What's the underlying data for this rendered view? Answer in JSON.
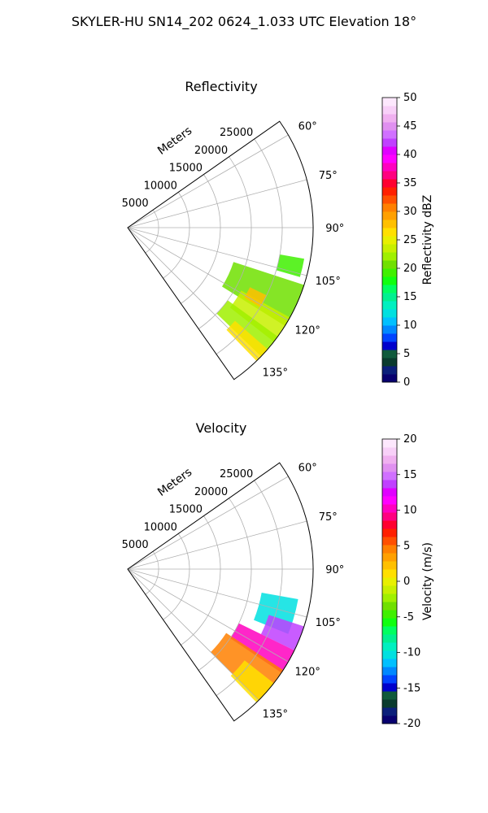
{
  "figure_title": "SKYLER-HU  SN14_202  0624_1.033 UTC Elevation 18°",
  "chart_data": [
    {
      "type": "polar-sector-radar",
      "title": "Reflectivity",
      "radial_label": "Meters",
      "theta_range_deg": [
        55,
        145
      ],
      "r_range": [
        0,
        30000
      ],
      "r_ticks": [
        5000,
        10000,
        15000,
        20000,
        25000
      ],
      "theta_ticks_deg": [
        60,
        75,
        90,
        105,
        120,
        135
      ],
      "theta_tick_labels": [
        "60°",
        "75°",
        "90°",
        "105°",
        "120°",
        "135°"
      ],
      "grid": true,
      "colorbar": {
        "label": "Reflectivity dBZ",
        "range": [
          0,
          50
        ],
        "ticks": [
          0,
          5,
          10,
          15,
          20,
          25,
          30,
          35,
          40,
          45,
          50
        ],
        "colors": [
          "#08006f",
          "#0b1f7a",
          "#0a3b2e",
          "#105a3c",
          "#0000cc",
          "#0044ff",
          "#0088ff",
          "#00c0ff",
          "#00e0e0",
          "#00f0c0",
          "#00f090",
          "#00ff60",
          "#10ff10",
          "#40f000",
          "#70e000",
          "#a0f000",
          "#c8f000",
          "#e8f000",
          "#ffe000",
          "#ffc000",
          "#ffa000",
          "#ff8000",
          "#ff5000",
          "#ff2000",
          "#ff0030",
          "#ff0080",
          "#ff00c0",
          "#ff00ff",
          "#e000ff",
          "#c040ff",
          "#d070ff",
          "#e090f0",
          "#f0b0f0",
          "#f8d0f8",
          "#fde8fd"
        ]
      },
      "echo_regions": [
        {
          "theta": [
            108,
            122
          ],
          "r": [
            18000,
            30000
          ],
          "value": 21
        },
        {
          "theta": [
            119,
            128
          ],
          "r": [
            21000,
            30000
          ],
          "value": 23
        },
        {
          "theta": [
            126,
            134
          ],
          "r": [
            20000,
            30000
          ],
          "value": 22
        },
        {
          "theta": [
            131,
            136
          ],
          "r": [
            23000,
            30000
          ],
          "value": 26
        },
        {
          "theta": [
            100,
            106
          ],
          "r": [
            25000,
            29000
          ],
          "value": 19
        },
        {
          "theta": [
            116,
            121
          ],
          "r": [
            22000,
            25000
          ],
          "value": 28
        }
      ]
    },
    {
      "type": "polar-sector-radar",
      "title": "Velocity",
      "radial_label": "Meters",
      "theta_range_deg": [
        55,
        145
      ],
      "r_range": [
        0,
        30000
      ],
      "r_ticks": [
        5000,
        10000,
        15000,
        20000,
        25000
      ],
      "theta_ticks_deg": [
        60,
        75,
        90,
        105,
        120,
        135
      ],
      "theta_tick_labels": [
        "60°",
        "75°",
        "90°",
        "105°",
        "120°",
        "135°"
      ],
      "grid": true,
      "colorbar": {
        "label": "Velocity (m/s)",
        "range": [
          -20,
          20
        ],
        "ticks": [
          -20,
          -15,
          -10,
          -5,
          0,
          5,
          10,
          15,
          20
        ],
        "colors": [
          "#08006f",
          "#0b1f7a",
          "#0a3b2e",
          "#105a3c",
          "#0000cc",
          "#0044ff",
          "#0088ff",
          "#00c0ff",
          "#00e0e0",
          "#00f0c0",
          "#00f090",
          "#00ff60",
          "#10ff10",
          "#40f000",
          "#70e000",
          "#a0f000",
          "#c8f000",
          "#e8f000",
          "#ffe000",
          "#ffc000",
          "#ffa000",
          "#ff8000",
          "#ff5000",
          "#ff2000",
          "#ff0030",
          "#ff0080",
          "#ff00c0",
          "#ff00ff",
          "#e000ff",
          "#c040ff",
          "#d070ff",
          "#e090f0",
          "#f0b0f0",
          "#f8d0f8",
          "#fde8fd"
        ]
      },
      "echo_regions": [
        {
          "theta": [
            100,
            112
          ],
          "r": [
            22000,
            28000
          ],
          "value": -10
        },
        {
          "theta": [
            108,
            116
          ],
          "r": [
            24000,
            30000
          ],
          "value": 14
        },
        {
          "theta": [
            116,
            124
          ],
          "r": [
            20000,
            30000
          ],
          "value": 10
        },
        {
          "theta": [
            123,
            135
          ],
          "r": [
            19000,
            30000
          ],
          "value": 4
        },
        {
          "theta": [
            128,
            136
          ],
          "r": [
            24000,
            30000
          ],
          "value": 1
        }
      ]
    }
  ]
}
